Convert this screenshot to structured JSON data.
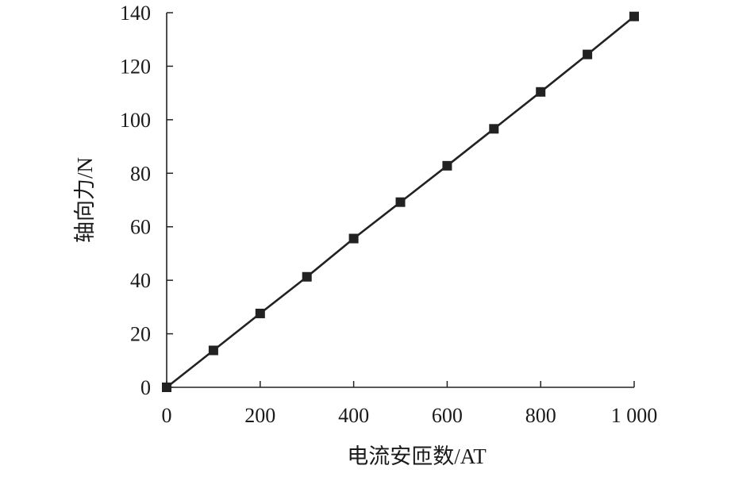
{
  "chart_data": {
    "type": "line",
    "title": "",
    "xlabel": "电流安匝数/AT",
    "ylabel": "轴向力/N",
    "xlim": [
      0,
      1000
    ],
    "ylim": [
      0,
      140
    ],
    "xticks": [
      0,
      200,
      400,
      600,
      800,
      1000
    ],
    "xtick_labels": [
      "0",
      "200",
      "400",
      "600",
      "800",
      "1 000"
    ],
    "yticks": [
      0,
      20,
      40,
      60,
      80,
      100,
      120,
      140
    ],
    "ytick_labels": [
      "0",
      "20",
      "40",
      "60",
      "80",
      "100",
      "120",
      "140"
    ],
    "grid": false,
    "legend": "none",
    "series": [
      {
        "x": [
          0,
          100,
          200,
          300,
          400,
          500,
          600,
          700,
          800,
          900,
          1000
        ],
        "y": [
          0,
          13.8,
          27.6,
          41.3,
          55.6,
          69.2,
          82.8,
          96.6,
          110.4,
          124.4,
          138.6
        ],
        "color": "#222222",
        "marker": "square"
      }
    ]
  }
}
